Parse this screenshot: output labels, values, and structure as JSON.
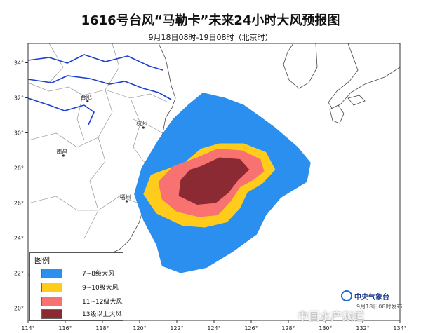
{
  "title": "1616号台风“马勒卡”未来24小时大风预报图",
  "subtitle": "9月18日08时-19日08时（北京时）",
  "map": {
    "lon_range": [
      114,
      134
    ],
    "lat_range": [
      19.3,
      35.1
    ],
    "lon_ticks": [
      "114°",
      "116°",
      "118°",
      "120°",
      "122°",
      "124°",
      "126°",
      "128°",
      "130°",
      "132°",
      "134°"
    ],
    "lat_ticks": [
      "20°",
      "22°",
      "24°",
      "26°",
      "28°",
      "30°",
      "32°",
      "34°"
    ],
    "cities": [
      {
        "name": "合肥",
        "lon": 117.2,
        "lat": 31.8
      },
      {
        "name": "杭州",
        "lon": 120.2,
        "lat": 30.3
      },
      {
        "name": "南昌",
        "lon": 115.9,
        "lat": 28.7
      },
      {
        "name": "福州",
        "lon": 119.3,
        "lat": 26.1
      }
    ],
    "wind_zones": [
      {
        "level": "7~8级大风",
        "color": "#2b8ff0",
        "polygon": [
          [
            122.6,
            31.6
          ],
          [
            123.4,
            32.3
          ],
          [
            124.6,
            32.0
          ],
          [
            125.6,
            31.6
          ],
          [
            126.4,
            31.0
          ],
          [
            127.3,
            30.3
          ],
          [
            128.5,
            29.2
          ],
          [
            129.2,
            28.3
          ],
          [
            129.0,
            27.2
          ],
          [
            127.6,
            26.3
          ],
          [
            126.8,
            25.3
          ],
          [
            126.3,
            24.2
          ],
          [
            125.0,
            23.2
          ],
          [
            123.6,
            22.3
          ],
          [
            122.2,
            22.0
          ],
          [
            121.2,
            22.4
          ],
          [
            120.9,
            23.6
          ],
          [
            120.2,
            25.0
          ],
          [
            119.7,
            26.5
          ],
          [
            120.1,
            28.0
          ],
          [
            121.0,
            29.6
          ],
          [
            121.8,
            30.8
          ]
        ]
      },
      {
        "level": "9~10级大风",
        "color": "#ffcc1c",
        "polygon": [
          [
            122.4,
            28.3
          ],
          [
            123.3,
            29.1
          ],
          [
            124.3,
            29.4
          ],
          [
            125.6,
            29.4
          ],
          [
            126.8,
            28.9
          ],
          [
            127.3,
            27.9
          ],
          [
            126.6,
            27.1
          ],
          [
            125.8,
            26.6
          ],
          [
            125.4,
            25.7
          ],
          [
            124.7,
            24.9
          ],
          [
            123.5,
            24.6
          ],
          [
            122.3,
            24.7
          ],
          [
            120.9,
            25.4
          ],
          [
            120.2,
            26.5
          ],
          [
            120.6,
            27.6
          ]
        ]
      },
      {
        "level": "11~12级大风",
        "color": "#f87271",
        "polygon": [
          [
            123.1,
            28.6
          ],
          [
            124.2,
            29.1
          ],
          [
            125.5,
            29.0
          ],
          [
            126.5,
            28.5
          ],
          [
            126.7,
            27.8
          ],
          [
            126.1,
            27.3
          ],
          [
            125.4,
            26.9
          ],
          [
            124.9,
            26.1
          ],
          [
            124.2,
            25.3
          ],
          [
            123.2,
            25.2
          ],
          [
            122.0,
            25.5
          ],
          [
            121.2,
            26.2
          ],
          [
            121.0,
            27.2
          ],
          [
            121.8,
            28.1
          ]
        ]
      },
      {
        "level": "13级以上大风",
        "color": "#8c2a33",
        "polygon": [
          [
            123.3,
            28.1
          ],
          [
            124.3,
            28.6
          ],
          [
            125.4,
            28.5
          ],
          [
            125.9,
            27.9
          ],
          [
            125.3,
            27.3
          ],
          [
            124.8,
            26.6
          ],
          [
            124.1,
            26.0
          ],
          [
            123.1,
            25.9
          ],
          [
            122.1,
            26.4
          ],
          [
            122.2,
            27.3
          ],
          [
            122.7,
            27.9
          ]
        ]
      }
    ]
  },
  "legend": {
    "title": "图例",
    "items": [
      {
        "label": "7~8级大风",
        "color": "#2b8ff0"
      },
      {
        "label": "9~10级大风",
        "color": "#ffcc1c"
      },
      {
        "label": "11~12级大风",
        "color": "#f87271"
      },
      {
        "label": "13级以上大风",
        "color": "#8c2a33"
      }
    ]
  },
  "logo": {
    "text": "中央气象台",
    "icon": "cma-logo-icon"
  },
  "watermark": {
    "text": "中国水产频道",
    "sub": "9月18日08时发布"
  }
}
